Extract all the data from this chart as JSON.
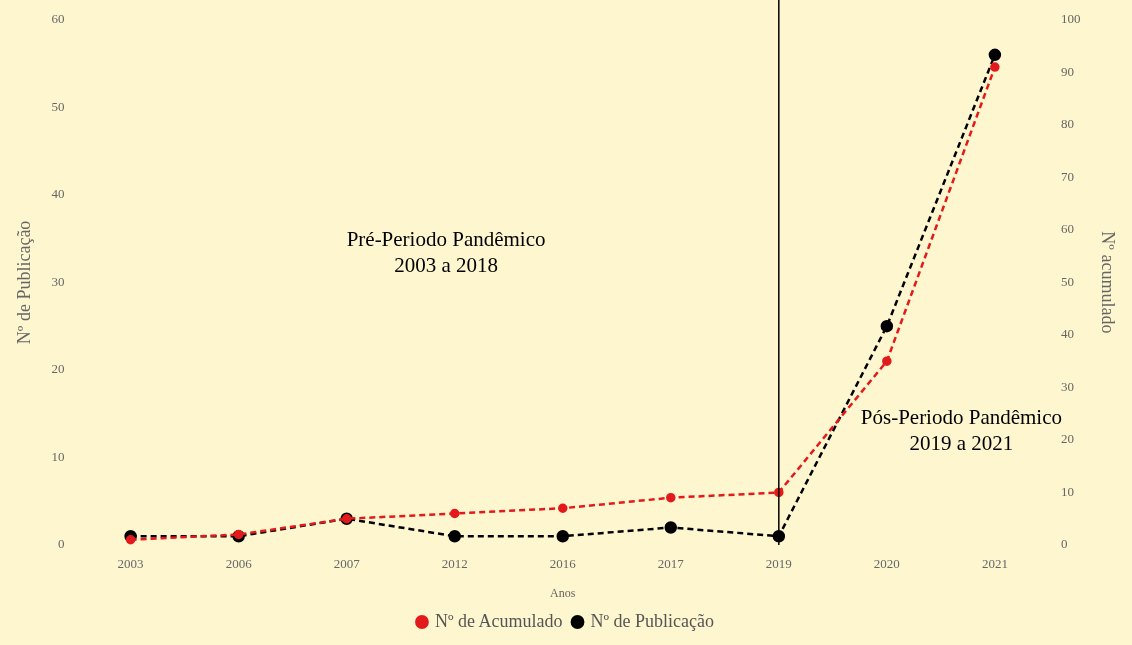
{
  "chart_data": {
    "type": "line",
    "xlabel": "Anos",
    "ylabel": "Nº de Publicação",
    "y2label": "Nº acumulado",
    "categories": [
      "2003",
      "2006",
      "2007",
      "2012",
      "2016",
      "2017",
      "2019",
      "2020",
      "2021"
    ],
    "series": [
      {
        "name": "Nº de Publicação",
        "color": "#000000",
        "values": [
          1,
          1,
          3,
          1,
          1,
          2,
          1,
          25,
          56
        ]
      },
      {
        "name": "Nº de Acumulado",
        "color": "#e31a1c",
        "axis": "y2",
        "values": [
          1,
          2,
          5,
          6,
          7,
          9,
          10,
          35,
          91
        ]
      }
    ],
    "ylim": [
      0,
      60
    ],
    "yticks": [
      0,
      10,
      20,
      30,
      40,
      50,
      60
    ],
    "y2lim": [
      0,
      100
    ],
    "y2ticks": [
      0,
      10,
      20,
      30,
      40,
      50,
      60,
      70,
      80,
      90,
      100
    ],
    "ref_lines": [
      {
        "axis": "x",
        "value": "2019",
        "color": "#000000"
      }
    ],
    "annotations": [
      "Pré-Periodo Pandêmico\n2003 a 2018",
      "Pós-Periodo Pandêmico\n2019 a 2021"
    ],
    "legend": "bottom",
    "grid": false,
    "marker": "circle",
    "line_style": "dashed"
  }
}
